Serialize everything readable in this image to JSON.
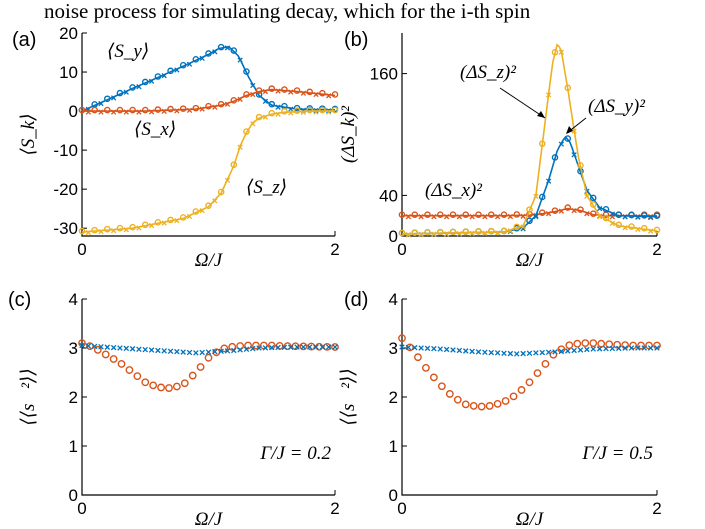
{
  "caption_line": "noise process for simulating decay, which for the i-th spin",
  "colors": {
    "x": "#D95319",
    "y": "#0072BD",
    "z": "#EDB120"
  },
  "chart_data": [
    {
      "panel": "(a)",
      "type": "line",
      "xlabel": "Ω/J",
      "ylabel": "⟨S_k⟩",
      "xlim": [
        0,
        2
      ],
      "ylim": [
        -32,
        20
      ],
      "xticks": [
        "0",
        "2"
      ],
      "yticks": [
        "20",
        "10",
        "0",
        "-10",
        "-20",
        "-30"
      ],
      "annotations": [
        "⟨S_y⟩",
        "⟨S_x⟩",
        "⟨S_z⟩"
      ],
      "series": [
        {
          "key": "y",
          "x": [
            0,
            0.2,
            0.4,
            0.6,
            0.8,
            1.0,
            1.08,
            1.16,
            1.24,
            1.32,
            1.4,
            1.5,
            1.7,
            2.0
          ],
          "y": [
            0,
            2.9,
            5.8,
            8.6,
            11.5,
            14.5,
            16.0,
            16.5,
            14.0,
            8.5,
            4.0,
            1.5,
            0.5,
            0.3
          ]
        },
        {
          "key": "x",
          "x": [
            0,
            0.5,
            0.9,
            1.1,
            1.2,
            1.3,
            1.4,
            1.5,
            1.7,
            2.0
          ],
          "y": [
            0,
            0,
            0.5,
            1.5,
            2.5,
            4.0,
            5.0,
            5.5,
            5.0,
            4.0
          ]
        },
        {
          "key": "z",
          "x": [
            0,
            0.4,
            0.8,
            1.0,
            1.1,
            1.2,
            1.25,
            1.3,
            1.35,
            1.4,
            1.5,
            1.6,
            1.8,
            2.0
          ],
          "y": [
            -31.0,
            -30.0,
            -27.5,
            -24.5,
            -21.0,
            -14.0,
            -9.0,
            -5.5,
            -3.0,
            -1.8,
            -0.8,
            -0.3,
            0,
            0
          ]
        }
      ]
    },
    {
      "panel": "(b)",
      "type": "line",
      "xlabel": "Ω/J",
      "ylabel": "(ΔS_k)²",
      "xlim": [
        0,
        2
      ],
      "ylim": [
        0,
        200
      ],
      "xticks": [
        "0",
        "2"
      ],
      "yticks": [
        "160",
        "40",
        "0"
      ],
      "annotations": [
        "(ΔS_z)²",
        "(ΔS_y)²",
        "(ΔS_x)²"
      ],
      "series": [
        {
          "key": "x",
          "x": [
            0,
            0.8,
            1.0,
            1.1,
            1.2,
            1.3,
            1.4,
            1.5,
            1.6,
            2.0
          ],
          "y": [
            20,
            20,
            20.5,
            22,
            24,
            27,
            25,
            21,
            20,
            20
          ]
        },
        {
          "key": "y",
          "x": [
            0,
            0.8,
            0.95,
            1.05,
            1.15,
            1.22,
            1.28,
            1.32,
            1.38,
            1.45,
            1.55,
            1.7,
            2.0
          ],
          "y": [
            2,
            4,
            8,
            20,
            55,
            85,
            98,
            92,
            70,
            45,
            28,
            20,
            19
          ]
        },
        {
          "key": "z",
          "x": [
            0,
            0.8,
            0.95,
            1.05,
            1.12,
            1.18,
            1.22,
            1.25,
            1.3,
            1.38,
            1.45,
            1.55,
            1.7,
            2.0
          ],
          "y": [
            2,
            4,
            10,
            40,
            110,
            170,
            190,
            182,
            145,
            80,
            40,
            20,
            10,
            5
          ]
        }
      ]
    },
    {
      "panel": "(c)",
      "type": "scatter",
      "xlabel": "Ω/J",
      "ylabel": "⟨⟨s⃗²⟩⟩",
      "xlim": [
        0,
        2
      ],
      "ylim": [
        0,
        4
      ],
      "xticks": [
        "0",
        "2"
      ],
      "yticks": [
        "4",
        "3",
        "2",
        "1",
        "0"
      ],
      "annotation": "Γ/J = 0.2",
      "series": [
        {
          "key": "circles",
          "x": [
            0,
            0.1,
            0.2,
            0.3,
            0.4,
            0.5,
            0.6,
            0.7,
            0.8,
            0.9,
            1.0,
            1.1,
            1.2,
            1.3,
            1.4,
            1.5,
            1.6,
            1.8,
            2.0
          ],
          "y": [
            3.1,
            3.0,
            2.85,
            2.7,
            2.5,
            2.3,
            2.2,
            2.18,
            2.25,
            2.5,
            2.8,
            2.98,
            3.03,
            3.05,
            3.05,
            3.05,
            3.04,
            3.03,
            3.02
          ]
        },
        {
          "key": "crosses",
          "x": [
            0,
            0.3,
            0.6,
            0.9,
            1.2,
            1.4,
            1.7,
            2.0
          ],
          "y": [
            3.05,
            3.0,
            2.95,
            2.9,
            2.95,
            3.0,
            3.02,
            3.02
          ]
        }
      ]
    },
    {
      "panel": "(d)",
      "type": "scatter",
      "xlabel": "Ω/J",
      "ylabel": "⟨⟨s⃗²⟩⟩",
      "xlim": [
        0,
        2
      ],
      "ylim": [
        0,
        4
      ],
      "xticks": [
        "0",
        "2"
      ],
      "yticks": [
        "4",
        "3",
        "2",
        "1",
        "0"
      ],
      "annotation": "Γ/J = 0.5",
      "series": [
        {
          "key": "circles",
          "x": [
            0,
            0.1,
            0.2,
            0.3,
            0.4,
            0.5,
            0.6,
            0.7,
            0.8,
            0.9,
            1.0,
            1.1,
            1.2,
            1.3,
            1.4,
            1.5,
            1.6,
            1.8,
            2.0
          ],
          "y": [
            3.2,
            2.9,
            2.55,
            2.25,
            2.0,
            1.85,
            1.8,
            1.82,
            1.9,
            2.05,
            2.3,
            2.6,
            2.9,
            3.05,
            3.1,
            3.1,
            3.08,
            3.05,
            3.05
          ]
        },
        {
          "key": "crosses",
          "x": [
            0,
            0.3,
            0.6,
            0.9,
            1.2,
            1.5,
            1.8,
            2.0
          ],
          "y": [
            3.02,
            2.98,
            2.92,
            2.88,
            2.92,
            2.98,
            3.0,
            3.0
          ]
        }
      ]
    }
  ]
}
